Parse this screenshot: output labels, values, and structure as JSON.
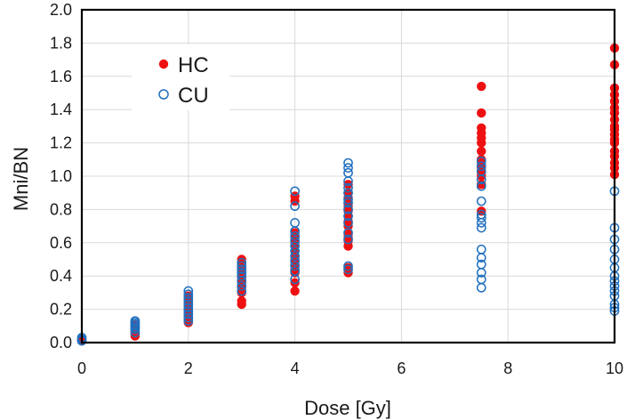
{
  "chart_data": {
    "type": "scatter",
    "title": "",
    "xlabel": "Dose [Gy]",
    "ylabel": "Mni/BN",
    "xlim": [
      0,
      10
    ],
    "ylim": [
      0,
      2.0
    ],
    "x_ticks": [
      0,
      2,
      4,
      6,
      8,
      10
    ],
    "y_ticks": [
      0.0,
      0.2,
      0.4,
      0.6,
      0.8,
      1.0,
      1.2,
      1.4,
      1.6,
      1.8,
      2.0
    ],
    "grid": true,
    "legend_position": "top-left",
    "series": [
      {
        "name": "HC",
        "marker": "filled-circle",
        "color": "#ee1111",
        "points": [
          [
            0,
            0.01
          ],
          [
            0,
            0.02
          ],
          [
            0,
            0.015
          ],
          [
            1,
            0.04
          ],
          [
            1,
            0.05
          ],
          [
            1,
            0.06
          ],
          [
            1,
            0.07
          ],
          [
            1,
            0.08
          ],
          [
            1,
            0.09
          ],
          [
            1,
            0.1
          ],
          [
            1,
            0.11
          ],
          [
            2,
            0.12
          ],
          [
            2,
            0.14
          ],
          [
            2,
            0.16
          ],
          [
            2,
            0.18
          ],
          [
            2,
            0.2
          ],
          [
            2,
            0.22
          ],
          [
            2,
            0.24
          ],
          [
            2,
            0.26
          ],
          [
            2,
            0.28
          ],
          [
            3,
            0.23
          ],
          [
            3,
            0.25
          ],
          [
            3,
            0.3
          ],
          [
            3,
            0.33
          ],
          [
            3,
            0.36
          ],
          [
            3,
            0.39
          ],
          [
            3,
            0.42
          ],
          [
            3,
            0.45
          ],
          [
            3,
            0.48
          ],
          [
            3,
            0.5
          ],
          [
            4,
            0.31
          ],
          [
            4,
            0.36
          ],
          [
            4,
            0.42
          ],
          [
            4,
            0.44
          ],
          [
            4,
            0.47
          ],
          [
            4,
            0.5
          ],
          [
            4,
            0.52
          ],
          [
            4,
            0.55
          ],
          [
            4,
            0.58
          ],
          [
            4,
            0.6
          ],
          [
            4,
            0.63
          ],
          [
            4,
            0.66
          ],
          [
            4,
            0.85
          ],
          [
            4,
            0.88
          ],
          [
            5,
            0.42
          ],
          [
            5,
            0.45
          ],
          [
            5,
            0.58
          ],
          [
            5,
            0.61
          ],
          [
            5,
            0.63
          ],
          [
            5,
            0.65
          ],
          [
            5,
            0.7
          ],
          [
            5,
            0.73
          ],
          [
            5,
            0.76
          ],
          [
            5,
            0.79
          ],
          [
            5,
            0.82
          ],
          [
            5,
            0.84
          ],
          [
            5,
            0.87
          ],
          [
            5,
            0.9
          ],
          [
            5,
            0.95
          ],
          [
            7.5,
            0.79
          ],
          [
            7.5,
            0.95
          ],
          [
            7.5,
            1.0
          ],
          [
            7.5,
            1.02
          ],
          [
            7.5,
            1.05
          ],
          [
            7.5,
            1.07
          ],
          [
            7.5,
            1.1
          ],
          [
            7.5,
            1.15
          ],
          [
            7.5,
            1.2
          ],
          [
            7.5,
            1.23
          ],
          [
            7.5,
            1.26
          ],
          [
            7.5,
            1.29
          ],
          [
            7.5,
            1.38
          ],
          [
            7.5,
            1.54
          ],
          [
            10,
            1.01
          ],
          [
            10,
            1.05
          ],
          [
            10,
            1.08
          ],
          [
            10,
            1.12
          ],
          [
            10,
            1.15
          ],
          [
            10,
            1.2
          ],
          [
            10,
            1.22
          ],
          [
            10,
            1.25
          ],
          [
            10,
            1.28
          ],
          [
            10,
            1.3
          ],
          [
            10,
            1.34
          ],
          [
            10,
            1.38
          ],
          [
            10,
            1.41
          ],
          [
            10,
            1.45
          ],
          [
            10,
            1.49
          ],
          [
            10,
            1.53
          ],
          [
            10,
            1.67
          ],
          [
            10,
            1.77
          ]
        ]
      },
      {
        "name": "CU",
        "marker": "open-circle",
        "color": "#1f6fbf",
        "points": [
          [
            0,
            0.01
          ],
          [
            0,
            0.02
          ],
          [
            0,
            0.03
          ],
          [
            1,
            0.06
          ],
          [
            1,
            0.08
          ],
          [
            1,
            0.09
          ],
          [
            1,
            0.1
          ],
          [
            1,
            0.11
          ],
          [
            1,
            0.12
          ],
          [
            1,
            0.13
          ],
          [
            2,
            0.13
          ],
          [
            2,
            0.15
          ],
          [
            2,
            0.17
          ],
          [
            2,
            0.19
          ],
          [
            2,
            0.21
          ],
          [
            2,
            0.23
          ],
          [
            2,
            0.25
          ],
          [
            2,
            0.27
          ],
          [
            2,
            0.29
          ],
          [
            2,
            0.31
          ],
          [
            3,
            0.31
          ],
          [
            3,
            0.34
          ],
          [
            3,
            0.37
          ],
          [
            3,
            0.4
          ],
          [
            3,
            0.42
          ],
          [
            3,
            0.44
          ],
          [
            3,
            0.46
          ],
          [
            3,
            0.48
          ],
          [
            4,
            0.38
          ],
          [
            4,
            0.43
          ],
          [
            4,
            0.46
          ],
          [
            4,
            0.49
          ],
          [
            4,
            0.52
          ],
          [
            4,
            0.55
          ],
          [
            4,
            0.58
          ],
          [
            4,
            0.61
          ],
          [
            4,
            0.64
          ],
          [
            4,
            0.67
          ],
          [
            4,
            0.72
          ],
          [
            4,
            0.82
          ],
          [
            4,
            0.91
          ],
          [
            5,
            0.44
          ],
          [
            5,
            0.46
          ],
          [
            5,
            0.62
          ],
          [
            5,
            0.66
          ],
          [
            5,
            0.72
          ],
          [
            5,
            0.76
          ],
          [
            5,
            0.8
          ],
          [
            5,
            0.84
          ],
          [
            5,
            0.86
          ],
          [
            5,
            0.9
          ],
          [
            5,
            0.93
          ],
          [
            5,
            0.97
          ],
          [
            5,
            1.02
          ],
          [
            5,
            1.05
          ],
          [
            5,
            1.08
          ],
          [
            7.5,
            0.33
          ],
          [
            7.5,
            0.38
          ],
          [
            7.5,
            0.42
          ],
          [
            7.5,
            0.47
          ],
          [
            7.5,
            0.51
          ],
          [
            7.5,
            0.56
          ],
          [
            7.5,
            0.69
          ],
          [
            7.5,
            0.72
          ],
          [
            7.5,
            0.75
          ],
          [
            7.5,
            0.77
          ],
          [
            7.5,
            0.85
          ],
          [
            7.5,
            0.94
          ],
          [
            7.5,
            0.98
          ],
          [
            7.5,
            1.03
          ],
          [
            7.5,
            1.06
          ],
          [
            7.5,
            1.09
          ],
          [
            10,
            0.19
          ],
          [
            10,
            0.21
          ],
          [
            10,
            0.23
          ],
          [
            10,
            0.28
          ],
          [
            10,
            0.31
          ],
          [
            10,
            0.34
          ],
          [
            10,
            0.37
          ],
          [
            10,
            0.4
          ],
          [
            10,
            0.45
          ],
          [
            10,
            0.5
          ],
          [
            10,
            0.56
          ],
          [
            10,
            0.62
          ],
          [
            10,
            0.69
          ],
          [
            10,
            0.91
          ]
        ]
      }
    ]
  },
  "colors": {
    "axis": "#000000",
    "grid": "#d9d9d9",
    "text": "#1a1a1a"
  }
}
